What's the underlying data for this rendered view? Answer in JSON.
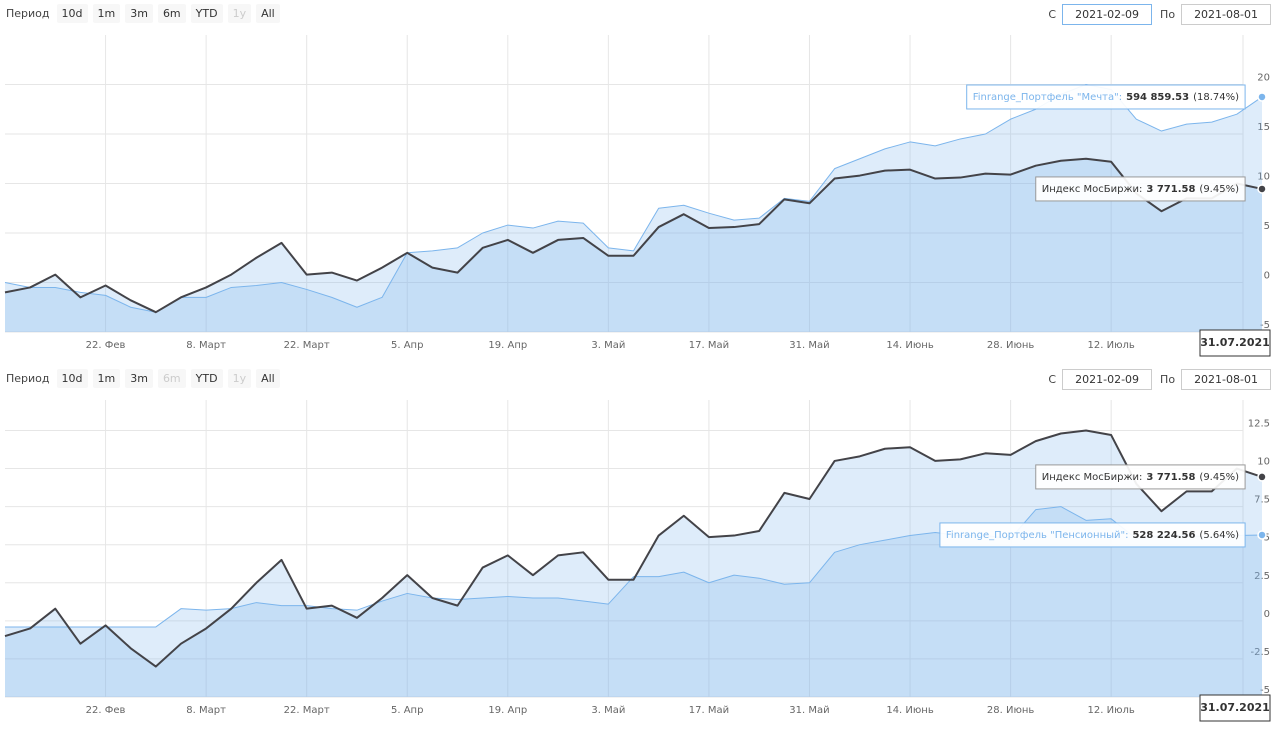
{
  "toolbars": [
    {
      "period_label": "Период",
      "buttons": [
        {
          "label": "10d",
          "enabled": true
        },
        {
          "label": "1m",
          "enabled": true
        },
        {
          "label": "3m",
          "enabled": true
        },
        {
          "label": "6m",
          "enabled": true
        },
        {
          "label": "YTD",
          "enabled": true
        },
        {
          "label": "1y",
          "enabled": false
        },
        {
          "label": "All",
          "enabled": true
        }
      ],
      "from_label": "С",
      "from": "2021-02-09",
      "to_label": "По",
      "to": "2021-08-01"
    },
    {
      "period_label": "Период",
      "buttons": [
        {
          "label": "10d",
          "enabled": true
        },
        {
          "label": "1m",
          "enabled": true
        },
        {
          "label": "3m",
          "enabled": true
        },
        {
          "label": "6m",
          "enabled": false
        },
        {
          "label": "YTD",
          "enabled": true
        },
        {
          "label": "1y",
          "enabled": false
        },
        {
          "label": "All",
          "enabled": true
        }
      ],
      "from_label": "С",
      "from": "2021-02-09",
      "to_label": "По",
      "to": "2021-08-01"
    }
  ],
  "chart_data": [
    {
      "type": "area",
      "categories": [
        null,
        null,
        null,
        null,
        "22. Фев",
        null,
        null,
        null,
        "8. Март",
        null,
        null,
        null,
        "22. Март",
        null,
        null,
        null,
        "5. Апр",
        null,
        null,
        null,
        "19. Апр",
        null,
        null,
        null,
        "3. Май",
        null,
        null,
        null,
        "17. Май",
        null,
        null,
        null,
        "31. Май",
        null,
        null,
        null,
        "14. Июнь",
        null,
        null,
        null,
        "28. Июнь",
        null,
        null,
        null,
        "12. Июль",
        null,
        null,
        null,
        null,
        null,
        null
      ],
      "navigator_end": "31.07.2021",
      "ylim": [
        -5,
        25
      ],
      "yticks": [
        -5,
        0,
        5,
        10,
        15,
        20
      ],
      "grid": true,
      "series": [
        {
          "color": "#7cb5ec",
          "values": [
            0,
            -0.5,
            -0.5,
            -1.0,
            -1.3,
            -2.5,
            -3.0,
            -1.5,
            -1.5,
            -0.5,
            -0.3,
            0.0,
            -0.7,
            -1.5,
            -2.5,
            -1.5,
            3.0,
            3.2,
            3.5,
            5.0,
            5.8,
            5.5,
            6.2,
            6.0,
            3.5,
            3.2,
            7.5,
            7.8,
            7.0,
            6.3,
            6.5,
            8.5,
            8.2,
            11.5,
            12.5,
            13.5,
            14.2,
            13.8,
            14.5,
            15.0,
            16.5,
            17.5,
            19.0,
            20.0,
            19.5,
            16.5,
            15.3,
            16.0,
            16.2,
            17.0,
            18.74
          ],
          "tooltip": {
            "label": "Finrange_Портфель \"Мечта\":",
            "value": "594 859.53",
            "change": "(18.74%)"
          }
        },
        {
          "color": "#434348",
          "values": [
            -1.0,
            -0.5,
            0.8,
            -1.5,
            -0.3,
            -1.8,
            -3.0,
            -1.5,
            -0.5,
            0.8,
            2.5,
            4.0,
            0.8,
            1.0,
            0.2,
            1.5,
            3.0,
            1.5,
            1.0,
            3.5,
            4.3,
            3.0,
            4.3,
            4.5,
            2.7,
            2.7,
            5.6,
            6.9,
            5.5,
            5.6,
            5.9,
            8.4,
            8.0,
            10.5,
            10.8,
            11.3,
            11.4,
            10.5,
            10.6,
            11.0,
            10.9,
            11.8,
            12.3,
            12.5,
            12.2,
            9.0,
            7.2,
            8.5,
            8.5,
            10.0,
            9.45
          ],
          "tooltip": {
            "label": "Индекс МосБиржи:",
            "value": "3 771.58",
            "change": "(9.45%)"
          }
        }
      ]
    },
    {
      "type": "area",
      "categories": [
        null,
        null,
        null,
        null,
        "22. Фев",
        null,
        null,
        null,
        "8. Март",
        null,
        null,
        null,
        "22. Март",
        null,
        null,
        null,
        "5. Апр",
        null,
        null,
        null,
        "19. Апр",
        null,
        null,
        null,
        "3. Май",
        null,
        null,
        null,
        "17. Май",
        null,
        null,
        null,
        "31. Май",
        null,
        null,
        null,
        "14. Июнь",
        null,
        null,
        null,
        "28. Июнь",
        null,
        null,
        null,
        "12. Июль",
        null,
        null,
        null,
        null,
        null,
        null
      ],
      "navigator_end": "31.07.2021",
      "ylim": [
        -5,
        14.5
      ],
      "yticks": [
        -5,
        -2.5,
        0,
        2.5,
        5,
        7.5,
        10,
        12.5
      ],
      "grid": true,
      "series": [
        {
          "color": "#7cb5ec",
          "values": [
            -0.4,
            -0.4,
            -0.4,
            -0.4,
            -0.4,
            -0.4,
            -0.4,
            0.8,
            0.7,
            0.8,
            1.2,
            1.0,
            1.0,
            0.8,
            0.7,
            1.3,
            1.8,
            1.5,
            1.4,
            1.5,
            1.6,
            1.5,
            1.5,
            1.3,
            1.1,
            2.9,
            2.9,
            3.2,
            2.5,
            3.0,
            2.8,
            2.4,
            2.5,
            4.5,
            5.0,
            5.3,
            5.6,
            5.8,
            5.6,
            5.6,
            5.4,
            7.3,
            7.5,
            6.6,
            6.7,
            5.4,
            5.6,
            5.6,
            5.5,
            5.6,
            5.64
          ],
          "tooltip": {
            "label": "Finrange_Портфель \"Пенсионный\":",
            "value": "528 224.56",
            "change": "(5.64%)"
          }
        },
        {
          "color": "#434348",
          "values": [
            -1.0,
            -0.5,
            0.8,
            -1.5,
            -0.3,
            -1.8,
            -3.0,
            -1.5,
            -0.5,
            0.8,
            2.5,
            4.0,
            0.8,
            1.0,
            0.2,
            1.5,
            3.0,
            1.5,
            1.0,
            3.5,
            4.3,
            3.0,
            4.3,
            4.5,
            2.7,
            2.7,
            5.6,
            6.9,
            5.5,
            5.6,
            5.9,
            8.4,
            8.0,
            10.5,
            10.8,
            11.3,
            11.4,
            10.5,
            10.6,
            11.0,
            10.9,
            11.8,
            12.3,
            12.5,
            12.2,
            9.0,
            7.2,
            8.5,
            8.5,
            10.0,
            9.45
          ],
          "tooltip": {
            "label": "Индекс МосБиржи:",
            "value": "3 771.58",
            "change": "(9.45%)"
          }
        }
      ]
    }
  ]
}
